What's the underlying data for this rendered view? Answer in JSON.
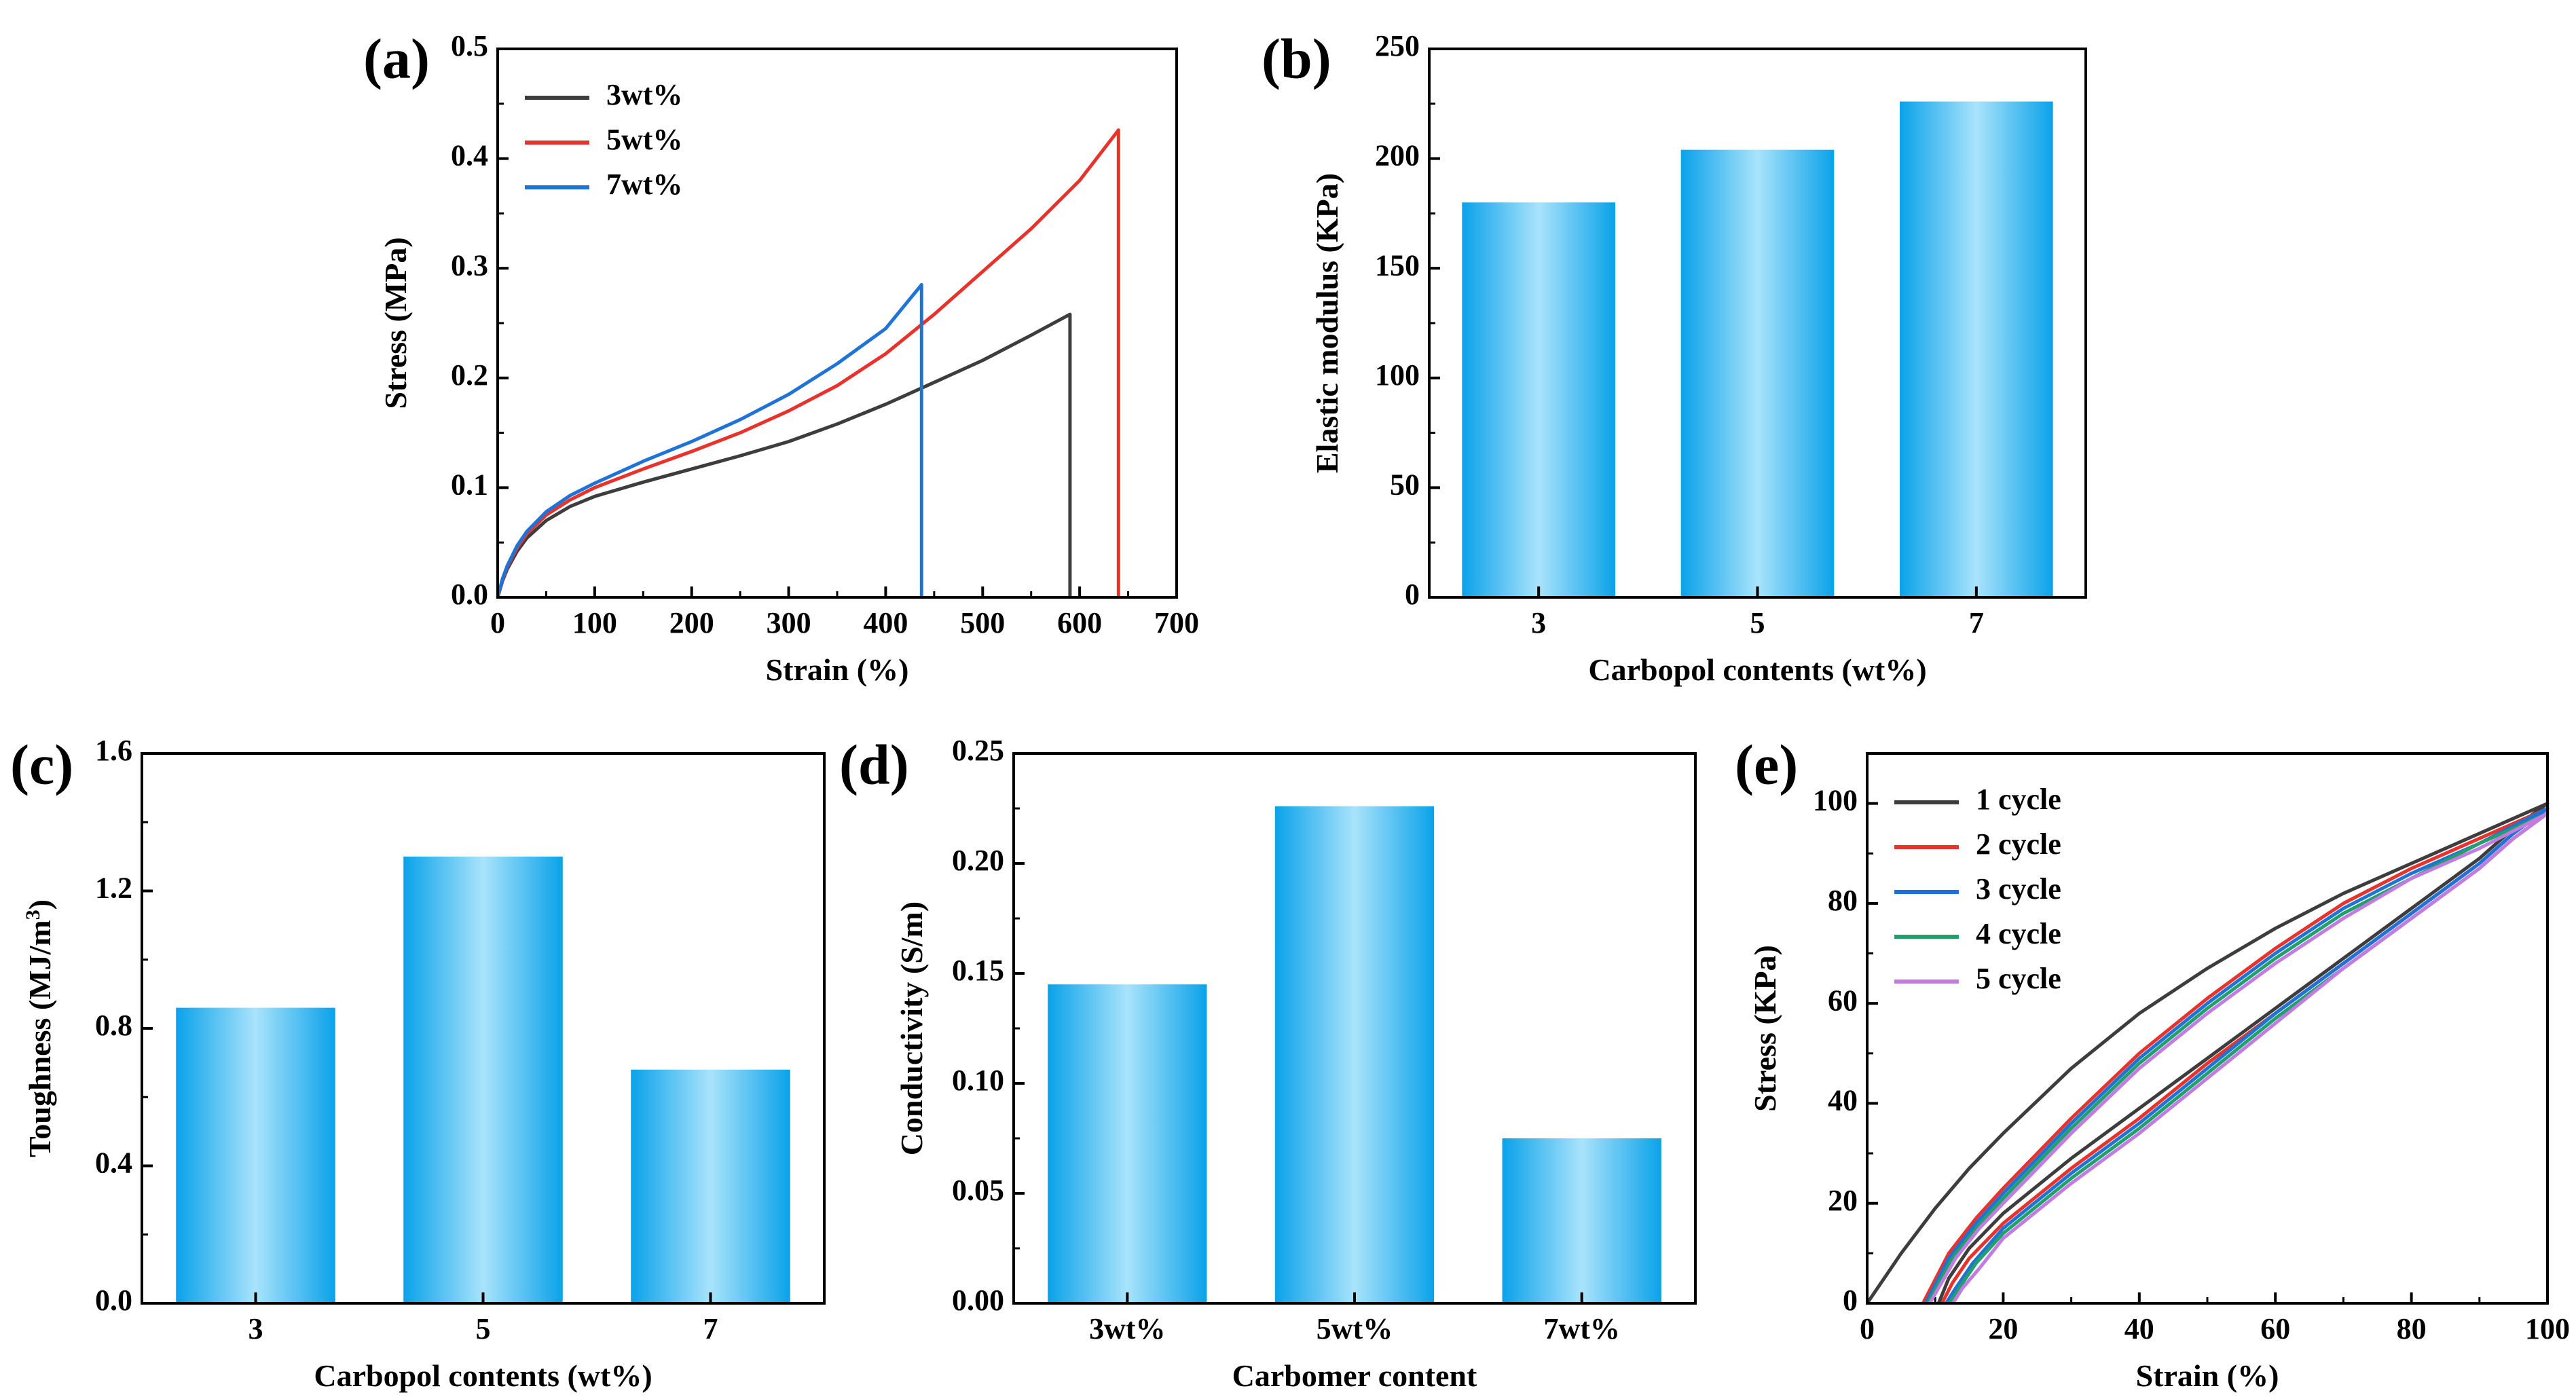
{
  "chart_data": [
    {
      "panel": "(a)",
      "type": "line",
      "xlabel": "Strain (%)",
      "ylabel": "Stress (MPa)",
      "xlim": [
        0,
        700
      ],
      "ylim": [
        0,
        0.5
      ],
      "xticks": [
        0,
        100,
        200,
        300,
        400,
        500,
        600,
        700
      ],
      "yticks": [
        0.0,
        0.1,
        0.2,
        0.3,
        0.4,
        0.5
      ],
      "xtick_labels": [
        "0",
        "100",
        "200",
        "300",
        "400",
        "500",
        "600",
        "700"
      ],
      "ytick_labels": [
        "0.0",
        "0.1",
        "0.2",
        "0.3",
        "0.4",
        "0.5"
      ],
      "legend": "top-left",
      "series": [
        {
          "name": "3wt%",
          "color": "#3d3d3d",
          "x": [
            0,
            5,
            10,
            20,
            30,
            50,
            75,
            100,
            150,
            200,
            250,
            300,
            350,
            400,
            450,
            500,
            550,
            590,
            590
          ],
          "y": [
            0,
            0.015,
            0.026,
            0.042,
            0.054,
            0.07,
            0.083,
            0.092,
            0.105,
            0.117,
            0.129,
            0.142,
            0.158,
            0.176,
            0.196,
            0.216,
            0.239,
            0.258,
            0
          ]
        },
        {
          "name": "5wt%",
          "color": "#e8322c",
          "x": [
            0,
            5,
            10,
            20,
            30,
            50,
            75,
            100,
            150,
            200,
            250,
            300,
            350,
            400,
            450,
            500,
            550,
            600,
            640,
            640
          ],
          "y": [
            0,
            0.016,
            0.028,
            0.045,
            0.058,
            0.075,
            0.089,
            0.1,
            0.117,
            0.133,
            0.15,
            0.17,
            0.193,
            0.222,
            0.258,
            0.297,
            0.336,
            0.38,
            0.426,
            0
          ]
        },
        {
          "name": "7wt%",
          "color": "#1f73d6",
          "x": [
            0,
            5,
            10,
            20,
            30,
            50,
            75,
            100,
            150,
            200,
            250,
            300,
            350,
            400,
            437,
            437
          ],
          "y": [
            0,
            0.017,
            0.029,
            0.047,
            0.06,
            0.078,
            0.093,
            0.104,
            0.124,
            0.142,
            0.162,
            0.185,
            0.213,
            0.245,
            0.285,
            0
          ]
        }
      ]
    },
    {
      "panel": "(b)",
      "type": "bar",
      "xlabel": "Carbopol contents (wt%)",
      "ylabel": "Elastic modulus (KPa)",
      "categories": [
        "3",
        "5",
        "7"
      ],
      "values": [
        180,
        204,
        226
      ],
      "ylim": [
        0,
        250
      ],
      "yticks": [
        0,
        50,
        100,
        150,
        200,
        250
      ],
      "ytick_labels": [
        "0",
        "50",
        "100",
        "150",
        "200",
        "250"
      ]
    },
    {
      "panel": "(c)",
      "type": "bar",
      "xlabel": "Carbopol contents (wt%)",
      "ylabel": "Toughness (MJ/m",
      "ylabel_sup": "3",
      "ylabel_tail": ")",
      "categories": [
        "3",
        "5",
        "7"
      ],
      "values": [
        0.86,
        1.3,
        0.68
      ],
      "ylim": [
        0,
        1.6
      ],
      "yticks": [
        0.0,
        0.4,
        0.8,
        1.2,
        1.6
      ],
      "ytick_labels": [
        "0.0",
        "0.4",
        "0.8",
        "1.2",
        "1.6"
      ]
    },
    {
      "panel": "(d)",
      "type": "bar",
      "xlabel": "Carbomer content",
      "ylabel": "Conductivity (S/m)",
      "categories": [
        "3wt%",
        "5wt%",
        "7wt%"
      ],
      "values": [
        0.145,
        0.226,
        0.075
      ],
      "ylim": [
        0,
        0.25
      ],
      "yticks": [
        0.0,
        0.05,
        0.1,
        0.15,
        0.2,
        0.25
      ],
      "ytick_labels": [
        "0.00",
        "0.05",
        "0.10",
        "0.15",
        "0.20",
        "0.25"
      ]
    },
    {
      "panel": "(e)",
      "type": "line",
      "xlabel": "Strain (%)",
      "ylabel": "Stress (KPa)",
      "xlim": [
        0,
        100
      ],
      "ylim": [
        0,
        110
      ],
      "xticks": [
        0,
        20,
        40,
        60,
        80,
        100
      ],
      "yticks": [
        0,
        20,
        40,
        60,
        80,
        100
      ],
      "xtick_labels": [
        "0",
        "20",
        "40",
        "60",
        "80",
        "100"
      ],
      "ytick_labels": [
        "0",
        "20",
        "40",
        "60",
        "80",
        "100"
      ],
      "legend": "top-left",
      "series": [
        {
          "name": "1 cycle",
          "color": "#3d3d3d",
          "x": [
            0,
            5,
            10,
            15,
            20,
            30,
            40,
            50,
            60,
            70,
            80,
            90,
            100,
            95,
            90,
            80,
            70,
            60,
            50,
            40,
            30,
            20,
            15,
            12,
            10.5
          ],
          "y": [
            0,
            10,
            19,
            27,
            34,
            47,
            58,
            67,
            75,
            82,
            88,
            94,
            100,
            95,
            89,
            79,
            69,
            59,
            49,
            39,
            29,
            18,
            11,
            5,
            0
          ]
        },
        {
          "name": "2 cycle",
          "color": "#e8322c",
          "x": [
            8.2,
            12,
            16,
            20,
            25,
            30,
            40,
            50,
            60,
            70,
            80,
            90,
            100,
            95,
            90,
            80,
            70,
            60,
            50,
            40,
            30,
            20,
            15,
            12.5,
            11
          ],
          "y": [
            0,
            10,
            17,
            23,
            30,
            37,
            50,
            61,
            71,
            80,
            87,
            93,
            99,
            94,
            88,
            78,
            68,
            58,
            48,
            37,
            27,
            16,
            9,
            4,
            0
          ]
        },
        {
          "name": "3 cycle",
          "color": "#1f73d6",
          "x": [
            8.6,
            12,
            16,
            20,
            25,
            30,
            40,
            50,
            60,
            70,
            80,
            90,
            100,
            95,
            90,
            80,
            70,
            60,
            50,
            40,
            30,
            20,
            15.5,
            13,
            11.6
          ],
          "y": [
            0,
            9,
            16,
            22,
            29,
            36,
            49,
            60,
            70,
            79,
            86,
            92,
            99,
            94,
            88,
            78,
            68,
            58,
            47,
            36,
            26,
            15,
            8,
            3,
            0
          ]
        },
        {
          "name": "4 cycle",
          "color": "#22a06b",
          "x": [
            8.9,
            12.5,
            16,
            20,
            25,
            30,
            40,
            50,
            60,
            70,
            80,
            90,
            100,
            95,
            90,
            80,
            70,
            60,
            50,
            40,
            30,
            20,
            16,
            13.5,
            12.1
          ],
          "y": [
            0,
            9,
            15,
            21,
            28,
            35,
            48,
            59,
            69,
            78,
            85,
            92,
            98,
            93,
            87,
            77,
            67,
            57,
            46,
            35,
            25,
            14,
            8,
            3,
            0
          ]
        },
        {
          "name": "5 cycle",
          "color": "#c27be0",
          "x": [
            9.2,
            13,
            16.5,
            20,
            25,
            30,
            40,
            50,
            60,
            70,
            80,
            90,
            100,
            95,
            90,
            80,
            70,
            60,
            50,
            40,
            30,
            20,
            16.5,
            14,
            12.6
          ],
          "y": [
            0,
            9,
            15,
            20,
            27,
            34,
            47,
            58,
            68,
            77,
            85,
            91,
            98,
            93,
            87,
            77,
            67,
            56,
            45,
            34,
            24,
            13,
            7,
            3,
            0
          ]
        }
      ]
    }
  ]
}
